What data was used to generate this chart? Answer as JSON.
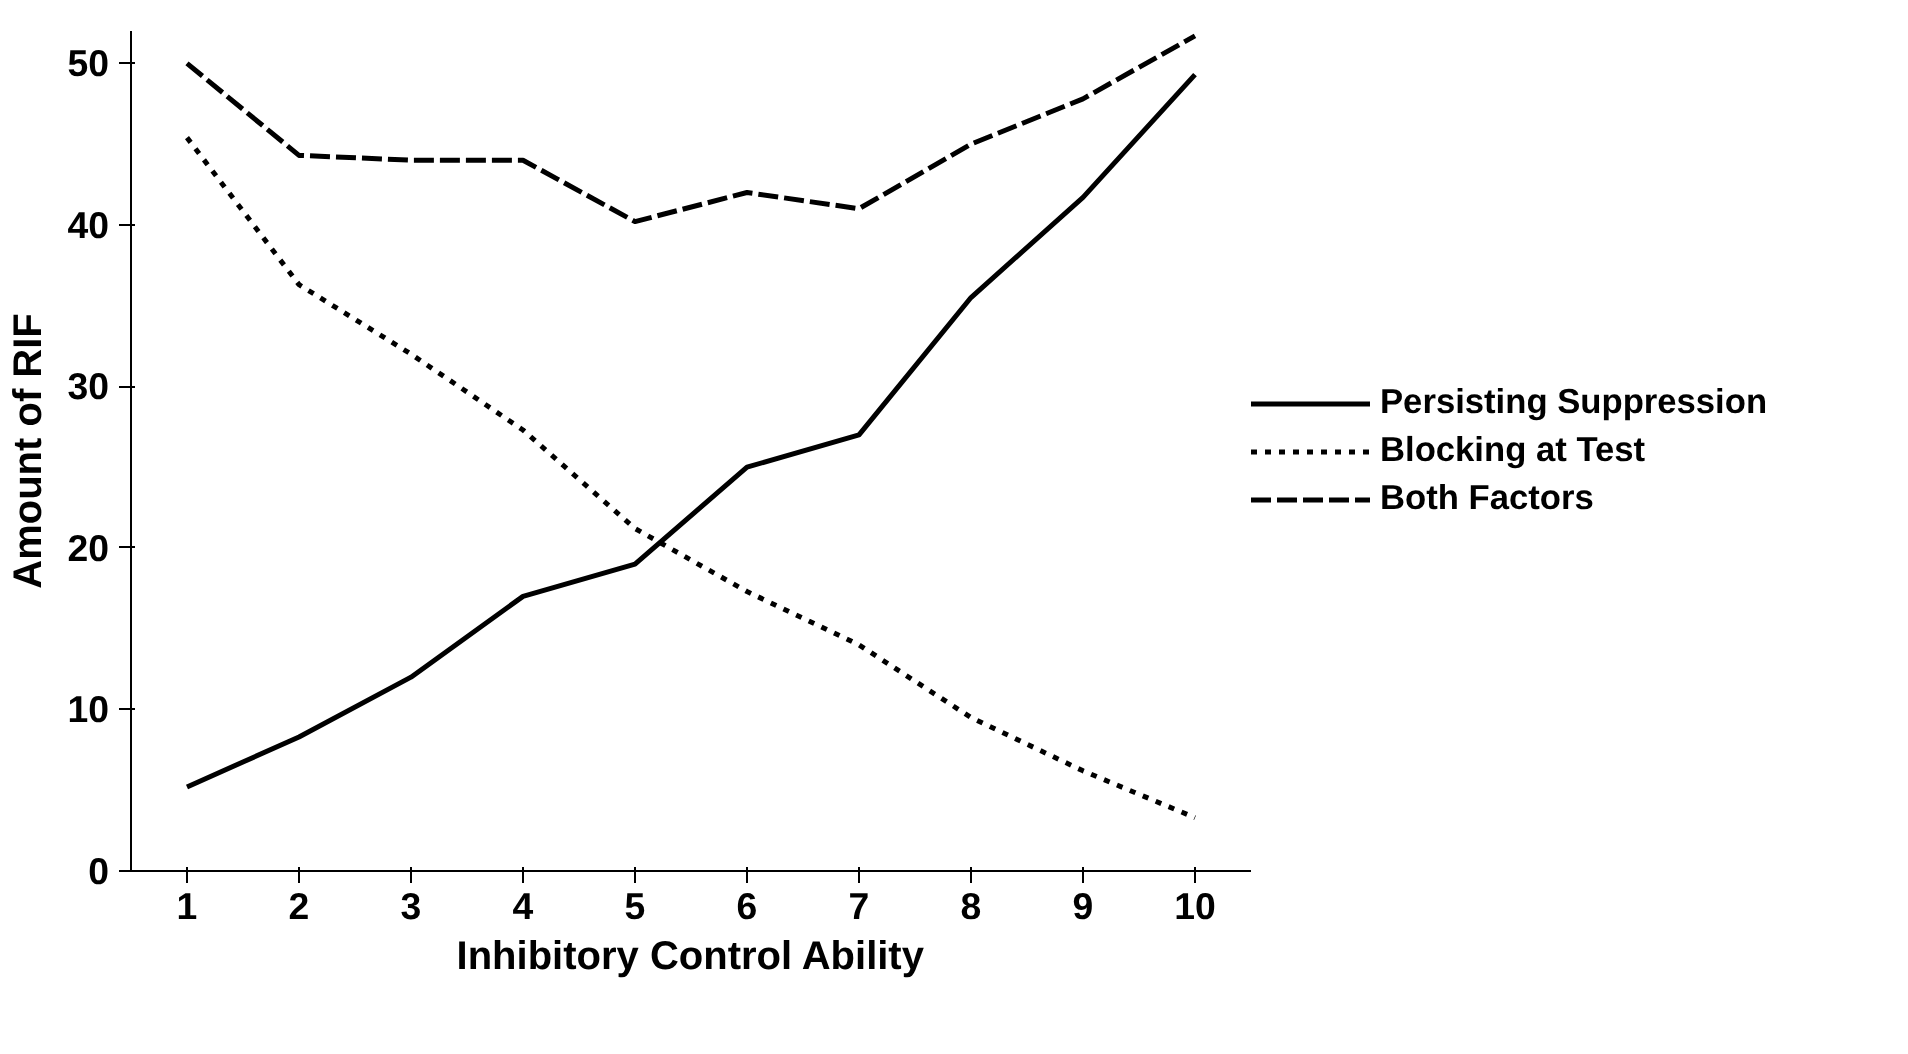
{
  "chart_data": {
    "type": "line",
    "xlabel": "Inhibitory Control Ability",
    "ylabel": "Amount of RIF",
    "x": [
      1,
      2,
      3,
      4,
      5,
      6,
      7,
      8,
      9,
      10
    ],
    "xlim": [
      0.5,
      10.5
    ],
    "xticks": [
      1,
      2,
      3,
      4,
      5,
      6,
      7,
      8,
      9,
      10
    ],
    "ylim": [
      0,
      52
    ],
    "yticks": [
      0,
      10,
      20,
      30,
      40,
      50
    ],
    "grid": false,
    "legend": "right",
    "series": [
      {
        "name": "Persisting Suppression",
        "color": "#000000",
        "line_style": "solid",
        "values": [
          5.2,
          8.3,
          12,
          17,
          19,
          25,
          27,
          35.5,
          41.7,
          49.3
        ]
      },
      {
        "name": "Blocking at Test",
        "color": "#000000",
        "line_style": "dotted",
        "values": [
          45.4,
          36.3,
          32,
          27.3,
          21.2,
          17.3,
          14,
          9.5,
          6.2,
          3.3
        ]
      },
      {
        "name": "Both Factors",
        "color": "#000000",
        "line_style": "dashed",
        "values": [
          50,
          44.3,
          44,
          44,
          40.2,
          42,
          41,
          45,
          47.8,
          51.7
        ]
      }
    ]
  }
}
